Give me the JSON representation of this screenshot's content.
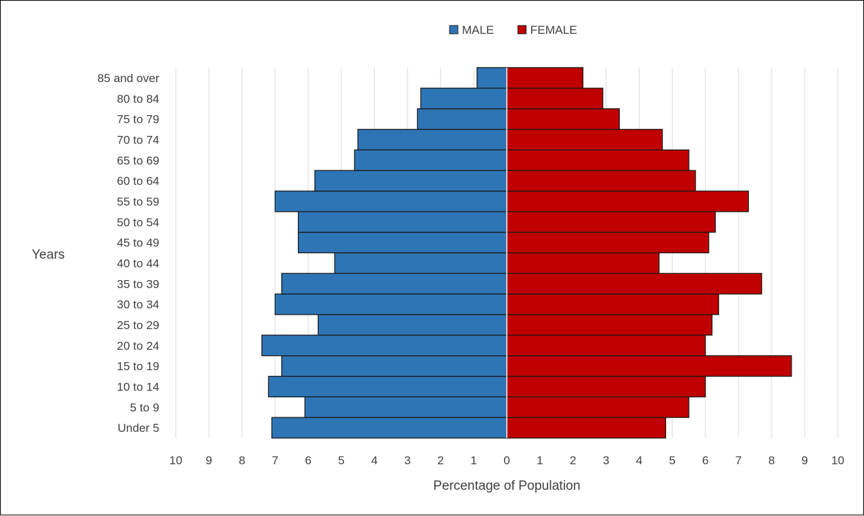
{
  "chart_data": {
    "type": "bar",
    "orientation": "horizontal",
    "subtype": "population-pyramid",
    "categories": [
      "Under 5",
      "5 to 9",
      "10 to 14",
      "15 to 19",
      "20 to 24",
      "25 to 29",
      "30 to 34",
      "35 to 39",
      "40 to 44",
      "45 to 49",
      "50 to 54",
      "55 to 59",
      "60 to 64",
      "65 to 69",
      "70 to 74",
      "75 to 79",
      "80 to 84",
      "85 and over"
    ],
    "series": [
      {
        "name": "MALE",
        "color": "#2E75B6",
        "side": "left",
        "values": [
          7.1,
          6.1,
          7.2,
          6.8,
          7.4,
          5.7,
          7.0,
          6.8,
          5.2,
          6.3,
          6.3,
          7.0,
          5.8,
          4.6,
          4.5,
          2.7,
          2.6,
          0.9
        ]
      },
      {
        "name": "FEMALE",
        "color": "#C00000",
        "side": "right",
        "values": [
          4.8,
          5.5,
          6.0,
          8.6,
          6.0,
          6.2,
          6.4,
          7.7,
          4.6,
          6.1,
          6.3,
          7.3,
          5.7,
          5.5,
          4.7,
          3.4,
          2.9,
          2.3
        ]
      }
    ],
    "xlim": [
      -10,
      10
    ],
    "x_ticks": [
      "10",
      "9",
      "8",
      "7",
      "6",
      "5",
      "4",
      "3",
      "2",
      "1",
      "0",
      "1",
      "2",
      "3",
      "4",
      "5",
      "6",
      "7",
      "8",
      "9",
      "10"
    ],
    "xlabel": "Percentage of Population",
    "ylabel": "Years",
    "legend_position": "top",
    "grid": "vertical"
  }
}
